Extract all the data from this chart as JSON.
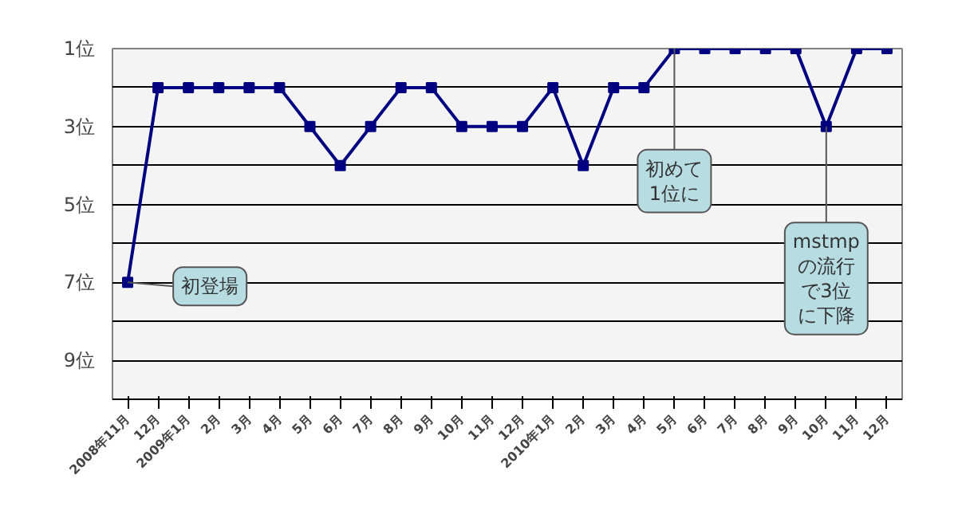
{
  "chart_data": {
    "type": "line",
    "categories": [
      "2008年11月",
      "12月",
      "2009年1月",
      "2月",
      "3月",
      "4月",
      "5月",
      "6月",
      "7月",
      "8月",
      "9月",
      "10月",
      "11月",
      "12月",
      "2010年1月",
      "2月",
      "3月",
      "4月",
      "5月",
      "6月",
      "7月",
      "8月",
      "9月",
      "10月",
      "11月",
      "12月"
    ],
    "series": [
      {
        "color": "#000080",
        "values": [
          7,
          2,
          2,
          2,
          2,
          2,
          3,
          4,
          3,
          2,
          2,
          3,
          3,
          3,
          2,
          4,
          2,
          2,
          1,
          1,
          1,
          1,
          1,
          3,
          1,
          1
        ]
      }
    ],
    "ylim": [
      10,
      1
    ],
    "yticks": [
      {
        "value": 1,
        "label": "1位"
      },
      {
        "value": 2,
        "label": null
      },
      {
        "value": 3,
        "label": "3位"
      },
      {
        "value": 4,
        "label": null
      },
      {
        "value": 5,
        "label": "5位"
      },
      {
        "value": 6,
        "label": null
      },
      {
        "value": 7,
        "label": "7位"
      },
      {
        "value": 8,
        "label": null
      },
      {
        "value": 9,
        "label": "9位"
      }
    ],
    "grid": "y",
    "marker": "square",
    "line_style": "solid",
    "annotations": [
      {
        "text": "初登場",
        "x": "2008年11月",
        "y": 7
      },
      {
        "text": "初めて1位に",
        "y": 1
      },
      {
        "text": "mstmpの流行で3位に下降",
        "y": 3
      }
    ]
  }
}
